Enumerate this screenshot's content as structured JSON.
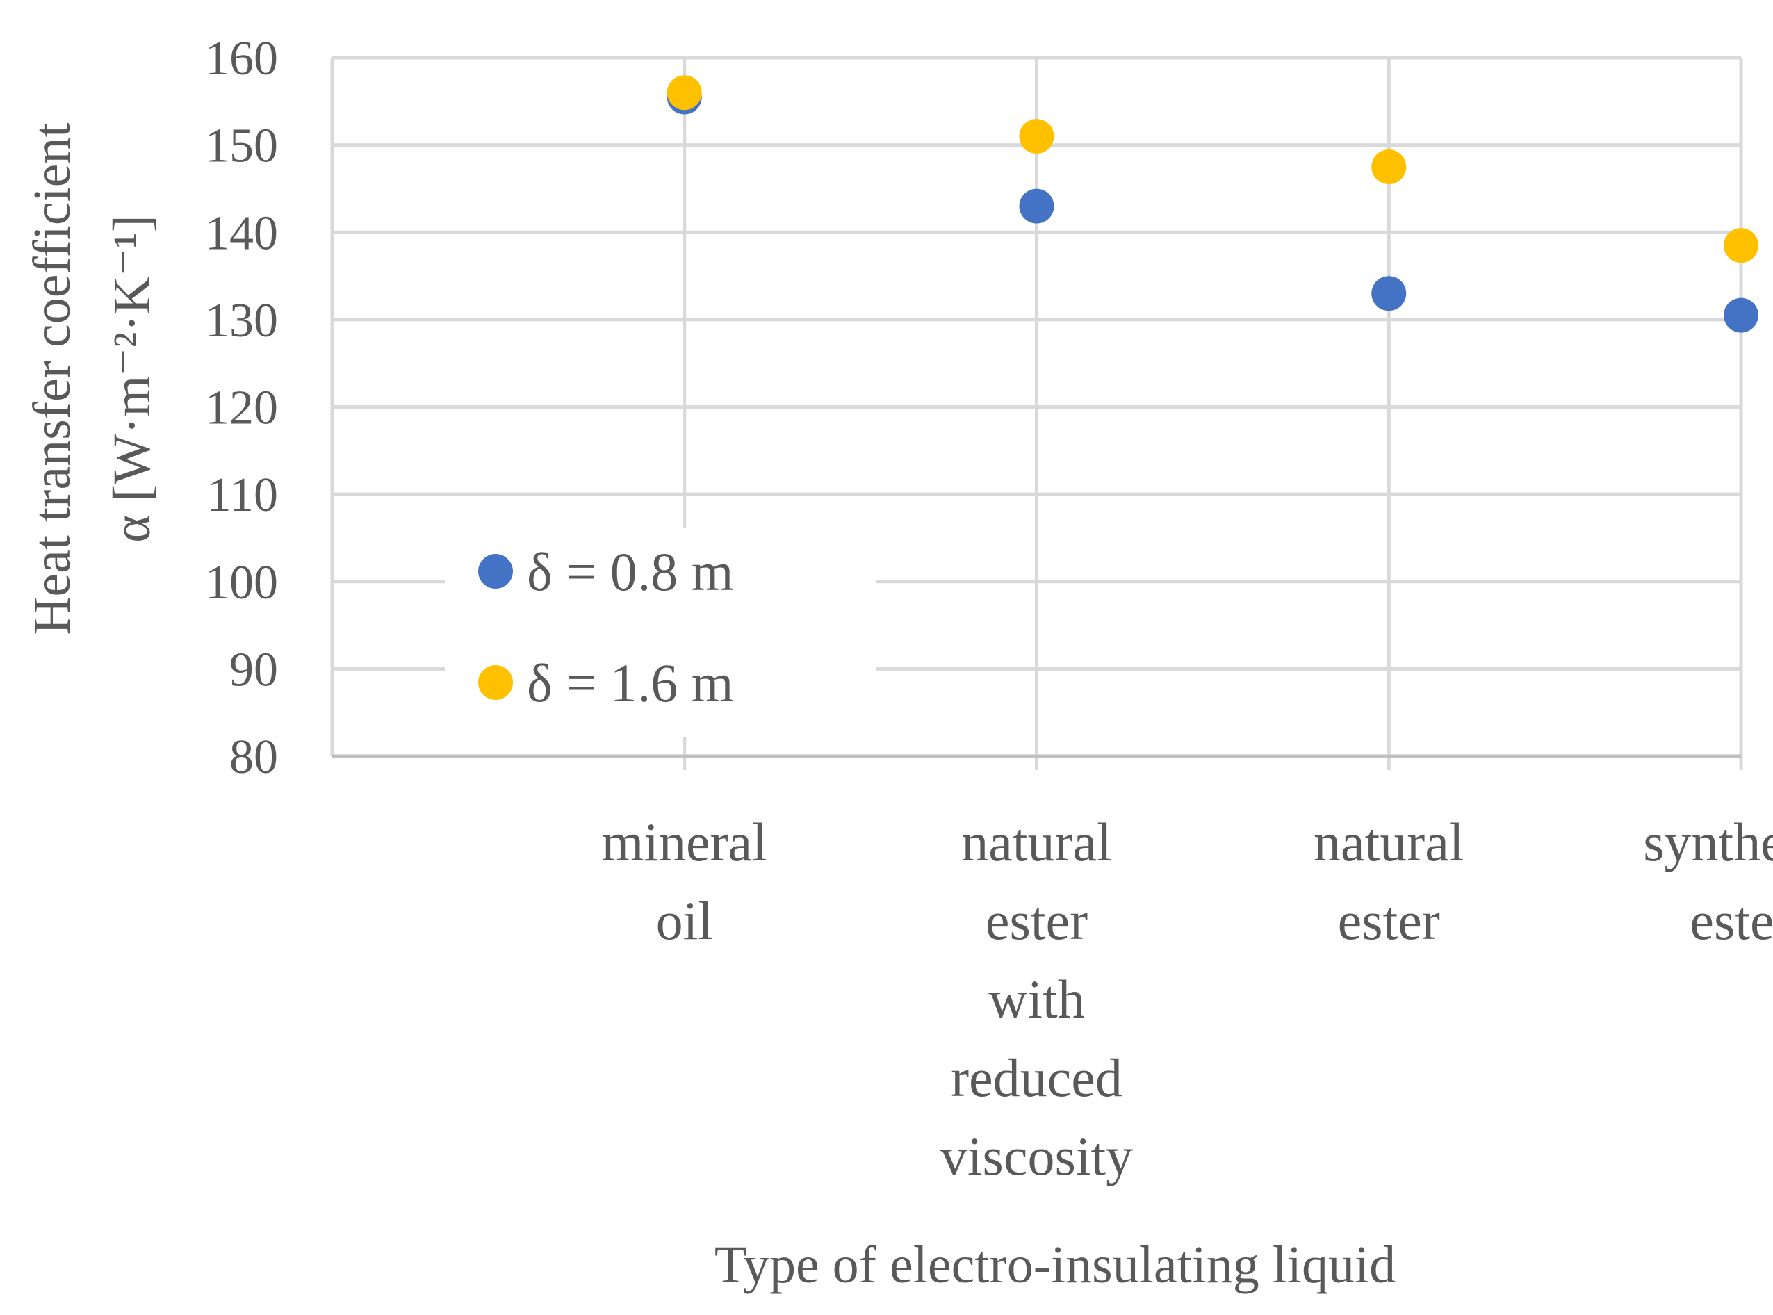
{
  "chart_data": {
    "type": "scatter",
    "categories": [
      [
        "mineral",
        "oil"
      ],
      [
        "natural",
        "ester",
        "with",
        "reduced",
        "viscosity"
      ],
      [
        "natural",
        "ester"
      ],
      [
        "synthetic",
        "ester"
      ]
    ],
    "series": [
      {
        "name": "δ = 0.8 m",
        "color": "#4472c4",
        "values": [
          155.5,
          143,
          133,
          130.5
        ]
      },
      {
        "name": "δ = 1.6 m",
        "color": "#ffc000",
        "values": [
          156,
          151,
          147.5,
          138.5
        ]
      }
    ],
    "ylabel_line1": "Heat transfer coefficient",
    "ylabel_line2": "α [W·m⁻²·K⁻¹]",
    "xlabel": "Type of electro-insulating liquid",
    "ylim": [
      80,
      160
    ],
    "yticks": [
      80,
      90,
      100,
      110,
      120,
      130,
      140,
      150,
      160
    ],
    "grid": true,
    "legend_position": "lower-left"
  }
}
